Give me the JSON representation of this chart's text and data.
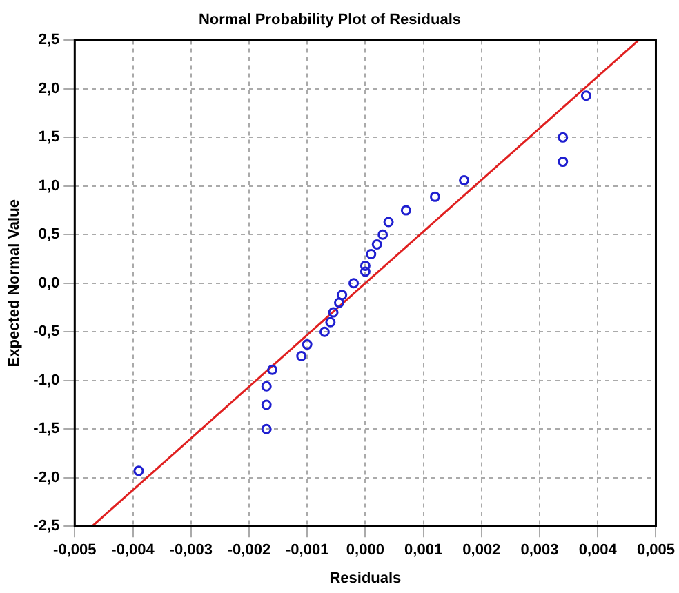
{
  "chart_data": {
    "type": "scatter",
    "title": "Normal Probability Plot of Residuals",
    "xlabel": "Residuals",
    "ylabel": "Expected Normal Value",
    "xlim": [
      -0.005,
      0.005
    ],
    "ylim": [
      -2.5,
      2.5
    ],
    "xticks": [
      {
        "value": -0.005,
        "label": "-0,005"
      },
      {
        "value": -0.004,
        "label": "-0,004"
      },
      {
        "value": -0.003,
        "label": "-0,003"
      },
      {
        "value": -0.002,
        "label": "-0,002"
      },
      {
        "value": -0.001,
        "label": "-0,001"
      },
      {
        "value": 0,
        "label": "0,000"
      },
      {
        "value": 0.001,
        "label": "0,001"
      },
      {
        "value": 0.002,
        "label": "0,002"
      },
      {
        "value": 0.003,
        "label": "0,003"
      },
      {
        "value": 0.004,
        "label": "0,004"
      },
      {
        "value": 0.005,
        "label": "0,005"
      }
    ],
    "yticks": [
      {
        "value": -2.5,
        "label": "-2,5"
      },
      {
        "value": -2,
        "label": "-2,0"
      },
      {
        "value": -1.5,
        "label": "-1,5"
      },
      {
        "value": -1,
        "label": "-1,0"
      },
      {
        "value": -0.5,
        "label": "-0,5"
      },
      {
        "value": 0,
        "label": "0,0"
      },
      {
        "value": 0.5,
        "label": "0,5"
      },
      {
        "value": 1,
        "label": "1,0"
      },
      {
        "value": 1.5,
        "label": "1,5"
      },
      {
        "value": 2,
        "label": "2,0"
      },
      {
        "value": 2.5,
        "label": "2,5"
      }
    ],
    "grid": true,
    "marker": "circle",
    "legend": false,
    "series": [
      {
        "color": "#1f1fd0",
        "x": [
          -0.0039,
          -0.0017,
          -0.0017,
          -0.0017,
          -0.0016,
          -0.0011,
          -0.001,
          -0.0007,
          -0.0006,
          -0.00055,
          -0.00045,
          -0.0004,
          -0.0002,
          0,
          0,
          0.0001,
          0.0002,
          0.0003,
          0.0004,
          0.0007,
          0.0012,
          0.0017,
          0.0034,
          0.0034,
          0.0038
        ],
        "values": [
          -1.93,
          -1.5,
          -1.25,
          -1.06,
          -0.89,
          -0.75,
          -0.63,
          -0.5,
          -0.4,
          -0.3,
          -0.2,
          -0.12,
          0,
          0.12,
          0.18,
          0.3,
          0.4,
          0.5,
          0.63,
          0.75,
          0.89,
          1.06,
          1.25,
          1.5,
          1.93
        ]
      },
      {
        "type": "line",
        "color": "#e02020",
        "x": [
          -0.0047,
          0.0047
        ],
        "values": [
          -2.5,
          2.5
        ],
        "marker": "none"
      }
    ]
  }
}
